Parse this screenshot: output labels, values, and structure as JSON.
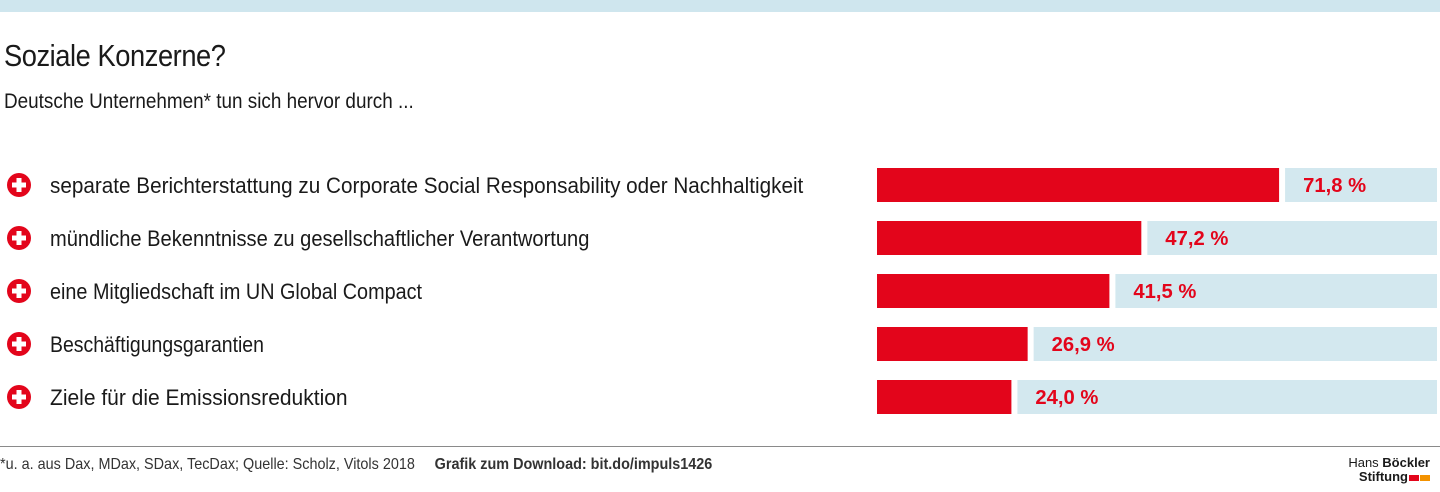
{
  "header": {
    "title": "Soziale Konzerne?",
    "subtitle": "Deutsche Unternehmen* tun sich hervor durch ..."
  },
  "chart_data": {
    "type": "bar",
    "orientation": "horizontal",
    "categories": [
      "separate Berichterstattung zu Corporate Social Responsability oder Nachhaltigkeit",
      "mündliche Bekenntnisse zu gesellschaftlicher Verantwortung",
      "eine Mitgliedschaft im UN Global Compact",
      "Beschäftigungsgarantien",
      "Ziele für die Emissionsreduktion"
    ],
    "values": [
      71.8,
      47.2,
      41.5,
      26.9,
      24.0
    ],
    "value_labels": [
      "71,8 %",
      "47,2 %",
      "41,5 %",
      "26,9 %",
      "24,0 %"
    ],
    "xlim": [
      0,
      100
    ],
    "unit": "%",
    "legend": "none",
    "grid": false,
    "colors": {
      "bar": "#e3051b",
      "track": "#d3e8ef",
      "icon": "#e3051b",
      "value_text": "#e3051b"
    }
  },
  "footer": {
    "note": "*u. a. aus Dax, MDax, SDax, TecDax;  Quelle: Scholz, Vitols 2018",
    "download": "Grafik zum Download: bit.do/impuls1426"
  },
  "logo": {
    "line1_normal": "Hans ",
    "line1_bold": "Böckler",
    "line2": "Stiftung",
    "colors": [
      "#e3051b",
      "#f39200"
    ]
  }
}
